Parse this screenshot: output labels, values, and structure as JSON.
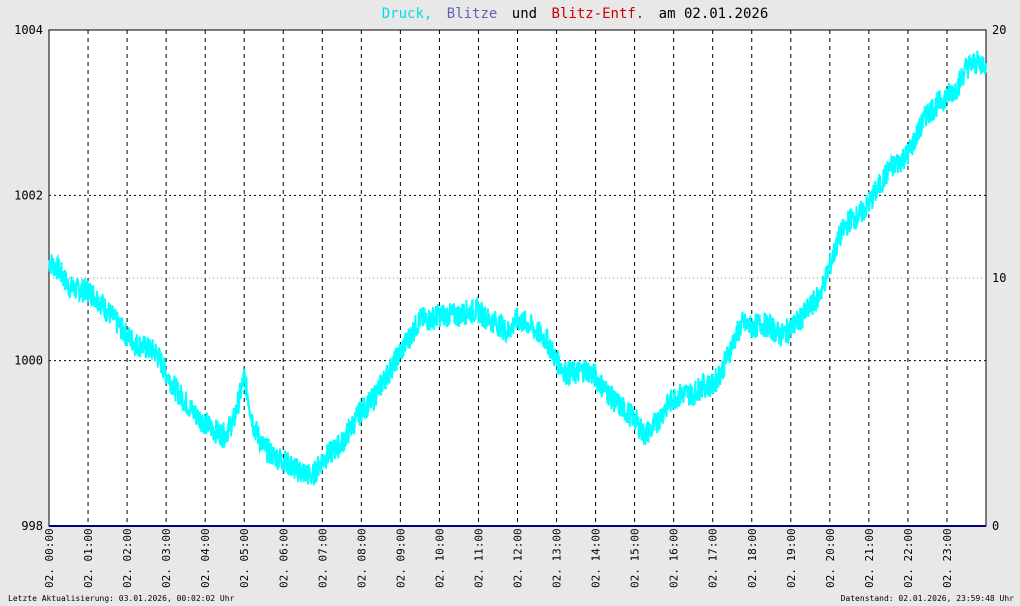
{
  "colors": {
    "background": "#e8e8e8",
    "plot_background": "#ffffff",
    "druck": "#00ffff",
    "blitze": "#6060c0",
    "blitz_entf": "#cc0000",
    "title_text": "#000000",
    "baseline": "#000080"
  },
  "title": {
    "part1": "Druck,",
    "part2": "Blitze",
    "part3": "und",
    "part4": "Blitz-Entf.",
    "part5": "am 02.01.2026"
  },
  "footer": {
    "left": "Letzte Aktualisierung: 03.01.2026, 00:02:02 Uhr",
    "right": "Datenstand: 02.01.2026, 23:59:48 Uhr"
  },
  "chart_data": {
    "type": "line",
    "title": "Druck, Blitze und Blitz-Entf. am 02.01.2026",
    "x_range_hours": [
      0,
      24
    ],
    "x_tick_labels": [
      "02. 00:00",
      "02. 01:00",
      "02. 02:00",
      "02. 03:00",
      "02. 04:00",
      "02. 05:00",
      "02. 06:00",
      "02. 07:00",
      "02. 08:00",
      "02. 09:00",
      "02. 10:00",
      "02. 11:00",
      "02. 12:00",
      "02. 13:00",
      "02. 14:00",
      "02. 15:00",
      "02. 16:00",
      "02. 17:00",
      "02. 18:00",
      "02. 19:00",
      "02. 20:00",
      "02. 21:00",
      "02. 22:00",
      "02. 23:00"
    ],
    "y_left": {
      "range": [
        998,
        1004
      ],
      "ticks": [
        "998",
        "1000",
        "1002",
        "1004"
      ]
    },
    "y_right": {
      "range": [
        0,
        20
      ],
      "ticks": [
        "0",
        "10",
        "20"
      ]
    },
    "grid": true,
    "series": [
      {
        "name": "Druck",
        "axis": "left",
        "x_hours": [
          0,
          0.25,
          0.5,
          0.75,
          1,
          1.25,
          1.5,
          1.75,
          2,
          2.25,
          2.5,
          2.75,
          3,
          3.25,
          3.5,
          3.75,
          4,
          4.25,
          4.5,
          4.75,
          5,
          5.25,
          5.5,
          5.75,
          6,
          6.25,
          6.5,
          6.75,
          7,
          7.25,
          7.5,
          7.75,
          8,
          8.25,
          8.5,
          8.75,
          9,
          9.25,
          9.5,
          9.75,
          10,
          10.25,
          10.5,
          10.75,
          11,
          11.25,
          11.5,
          11.75,
          12,
          12.25,
          12.5,
          12.75,
          13,
          13.25,
          13.5,
          13.75,
          14,
          14.25,
          14.5,
          14.75,
          15,
          15.25,
          15.5,
          15.75,
          16,
          16.25,
          16.5,
          16.75,
          17,
          17.25,
          17.5,
          17.75,
          18,
          18.25,
          18.5,
          18.75,
          19,
          19.25,
          19.5,
          19.75,
          20,
          20.25,
          20.5,
          20.75,
          21,
          21.25,
          21.5,
          21.75,
          22,
          22.25,
          22.5,
          22.75,
          23,
          23.25,
          23.5,
          23.75,
          24
        ],
        "values": [
          1001.2,
          1001.1,
          1000.9,
          1000.85,
          1000.85,
          1000.75,
          1000.6,
          1000.45,
          1000.3,
          1000.2,
          1000.15,
          1000.1,
          999.85,
          999.65,
          999.5,
          999.35,
          999.25,
          999.15,
          999.1,
          999.3,
          999.8,
          999.2,
          998.95,
          998.85,
          998.8,
          998.7,
          998.65,
          998.6,
          998.8,
          998.9,
          999.0,
          999.2,
          999.4,
          999.5,
          999.7,
          999.9,
          1000.1,
          1000.3,
          1000.5,
          1000.5,
          1000.55,
          1000.55,
          1000.55,
          1000.6,
          1000.6,
          1000.5,
          1000.45,
          1000.35,
          1000.5,
          1000.45,
          1000.35,
          1000.25,
          1000.0,
          999.85,
          999.85,
          999.9,
          999.8,
          999.65,
          999.5,
          999.4,
          999.3,
          999.1,
          999.2,
          999.4,
          999.55,
          999.6,
          999.6,
          999.7,
          999.7,
          999.9,
          1000.2,
          1000.45,
          1000.4,
          1000.45,
          1000.4,
          1000.3,
          1000.4,
          1000.5,
          1000.65,
          1000.8,
          1001.15,
          1001.5,
          1001.7,
          1001.75,
          1001.9,
          1002.1,
          1002.3,
          1002.4,
          1002.5,
          1002.75,
          1003.0,
          1003.1,
          1003.2,
          1003.3,
          1003.55,
          1003.6,
          1003.6
        ]
      },
      {
        "name": "Blitze",
        "axis": "right",
        "values_constant": 0
      },
      {
        "name": "Blitz-Entf.",
        "axis": "right",
        "values_constant": 0
      }
    ]
  }
}
